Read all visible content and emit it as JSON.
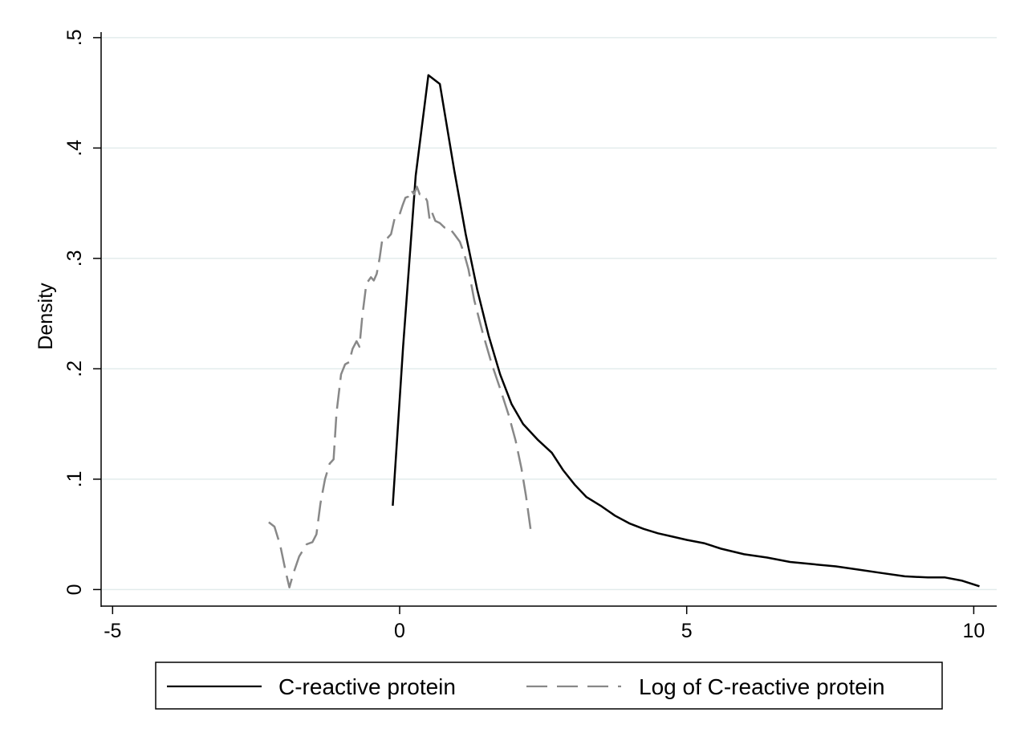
{
  "chart_data": {
    "type": "line",
    "title": "",
    "xlabel": "",
    "ylabel": "Density",
    "xlim": [
      -5.2,
      10.4
    ],
    "ylim": [
      -0.015,
      0.505
    ],
    "x_ticks": [
      -5,
      0,
      5,
      10
    ],
    "x_tick_labels": [
      "-5",
      "0",
      "5",
      "10"
    ],
    "y_ticks": [
      0,
      0.1,
      0.2,
      0.3,
      0.4,
      0.5
    ],
    "y_tick_labels": [
      "0",
      ".1",
      ".2",
      ".3",
      ".4",
      ".5"
    ],
    "grid": true,
    "legend_position": "bottom",
    "series": [
      {
        "name": "C-reactive protein",
        "color": "#000000",
        "dash": "solid",
        "points": [
          [
            -0.12,
            0.076
          ],
          [
            0.06,
            0.22
          ],
          [
            0.28,
            0.375
          ],
          [
            0.5,
            0.466
          ],
          [
            0.7,
            0.458
          ],
          [
            0.95,
            0.38
          ],
          [
            1.15,
            0.322
          ],
          [
            1.35,
            0.272
          ],
          [
            1.55,
            0.23
          ],
          [
            1.75,
            0.195
          ],
          [
            1.95,
            0.168
          ],
          [
            2.15,
            0.15
          ],
          [
            2.4,
            0.136
          ],
          [
            2.65,
            0.124
          ],
          [
            2.85,
            0.108
          ],
          [
            3.05,
            0.095
          ],
          [
            3.25,
            0.084
          ],
          [
            3.5,
            0.076
          ],
          [
            3.75,
            0.067
          ],
          [
            4.0,
            0.06
          ],
          [
            4.25,
            0.055
          ],
          [
            4.5,
            0.051
          ],
          [
            4.75,
            0.048
          ],
          [
            5.0,
            0.045
          ],
          [
            5.3,
            0.042
          ],
          [
            5.6,
            0.037
          ],
          [
            6.0,
            0.032
          ],
          [
            6.4,
            0.029
          ],
          [
            6.8,
            0.025
          ],
          [
            7.2,
            0.023
          ],
          [
            7.6,
            0.021
          ],
          [
            8.0,
            0.018
          ],
          [
            8.4,
            0.015
          ],
          [
            8.8,
            0.012
          ],
          [
            9.2,
            0.011
          ],
          [
            9.5,
            0.011
          ],
          [
            9.8,
            0.008
          ],
          [
            10.1,
            0.003
          ]
        ]
      },
      {
        "name": "Log of C-reactive protein",
        "color": "#888888",
        "dash": "dashed",
        "points": [
          [
            -2.28,
            0.061
          ],
          [
            -2.18,
            0.057
          ],
          [
            -2.08,
            0.04
          ],
          [
            -1.98,
            0.015
          ],
          [
            -1.92,
            0.002
          ],
          [
            -1.85,
            0.015
          ],
          [
            -1.75,
            0.03
          ],
          [
            -1.62,
            0.041
          ],
          [
            -1.52,
            0.043
          ],
          [
            -1.45,
            0.05
          ],
          [
            -1.38,
            0.078
          ],
          [
            -1.3,
            0.1
          ],
          [
            -1.22,
            0.114
          ],
          [
            -1.15,
            0.118
          ],
          [
            -1.1,
            0.16
          ],
          [
            -1.02,
            0.195
          ],
          [
            -0.95,
            0.204
          ],
          [
            -0.88,
            0.206
          ],
          [
            -0.82,
            0.218
          ],
          [
            -0.75,
            0.225
          ],
          [
            -0.7,
            0.22
          ],
          [
            -0.65,
            0.248
          ],
          [
            -0.58,
            0.277
          ],
          [
            -0.5,
            0.283
          ],
          [
            -0.45,
            0.28
          ],
          [
            -0.4,
            0.286
          ],
          [
            -0.35,
            0.3
          ],
          [
            -0.3,
            0.318
          ],
          [
            -0.22,
            0.318
          ],
          [
            -0.15,
            0.322
          ],
          [
            -0.08,
            0.338
          ],
          [
            0.0,
            0.34
          ],
          [
            0.05,
            0.348
          ],
          [
            0.1,
            0.355
          ],
          [
            0.15,
            0.356
          ],
          [
            0.2,
            0.362
          ],
          [
            0.25,
            0.358
          ],
          [
            0.3,
            0.365
          ],
          [
            0.35,
            0.358
          ],
          [
            0.42,
            0.358
          ],
          [
            0.48,
            0.352
          ],
          [
            0.52,
            0.336
          ],
          [
            0.56,
            0.342
          ],
          [
            0.62,
            0.334
          ],
          [
            0.7,
            0.332
          ],
          [
            0.78,
            0.328
          ],
          [
            0.86,
            0.328
          ],
          [
            0.95,
            0.322
          ],
          [
            1.05,
            0.315
          ],
          [
            1.12,
            0.305
          ],
          [
            1.2,
            0.29
          ],
          [
            1.3,
            0.262
          ],
          [
            1.45,
            0.232
          ],
          [
            1.6,
            0.205
          ],
          [
            1.75,
            0.182
          ],
          [
            1.9,
            0.158
          ],
          [
            2.02,
            0.135
          ],
          [
            2.12,
            0.11
          ],
          [
            2.2,
            0.085
          ],
          [
            2.28,
            0.055
          ]
        ]
      }
    ]
  }
}
